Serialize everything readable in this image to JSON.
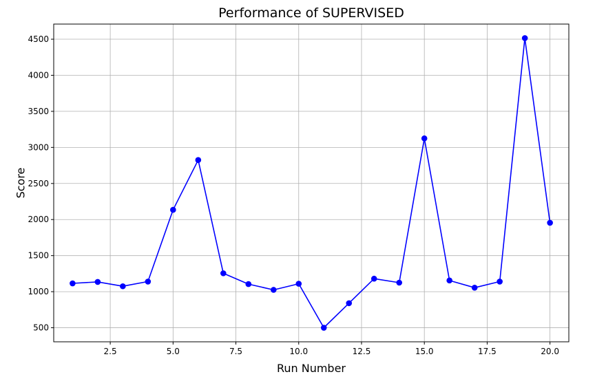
{
  "chart_data": {
    "type": "line",
    "title": "Performance of SUPERVISED",
    "xlabel": "Run Number",
    "ylabel": "Score",
    "xlim": [
      0.25,
      20.75
    ],
    "ylim": [
      305,
      4710
    ],
    "xticks": [
      2.5,
      5.0,
      7.5,
      10.0,
      12.5,
      15.0,
      17.5,
      20.0
    ],
    "xtick_labels": [
      "2.5",
      "5.0",
      "7.5",
      "10.0",
      "12.5",
      "15.0",
      "17.5",
      "20.0"
    ],
    "yticks": [
      500,
      1000,
      1500,
      2000,
      2500,
      3000,
      3500,
      4000,
      4500
    ],
    "ytick_labels": [
      "500",
      "1000",
      "1500",
      "2000",
      "2500",
      "3000",
      "3500",
      "4000",
      "4500"
    ],
    "grid": true,
    "legend": false,
    "series": [
      {
        "color": "#0000ff",
        "marker": "circle",
        "x": [
          1,
          2,
          3,
          4,
          5,
          6,
          7,
          8,
          9,
          10,
          11,
          12,
          13,
          14,
          15,
          16,
          17,
          18,
          19,
          20
        ],
        "y": [
          1115,
          1135,
          1075,
          1140,
          2135,
          2825,
          1255,
          1105,
          1025,
          1110,
          500,
          840,
          1180,
          1125,
          3125,
          1155,
          1055,
          1140,
          4515,
          1955
        ]
      }
    ]
  }
}
